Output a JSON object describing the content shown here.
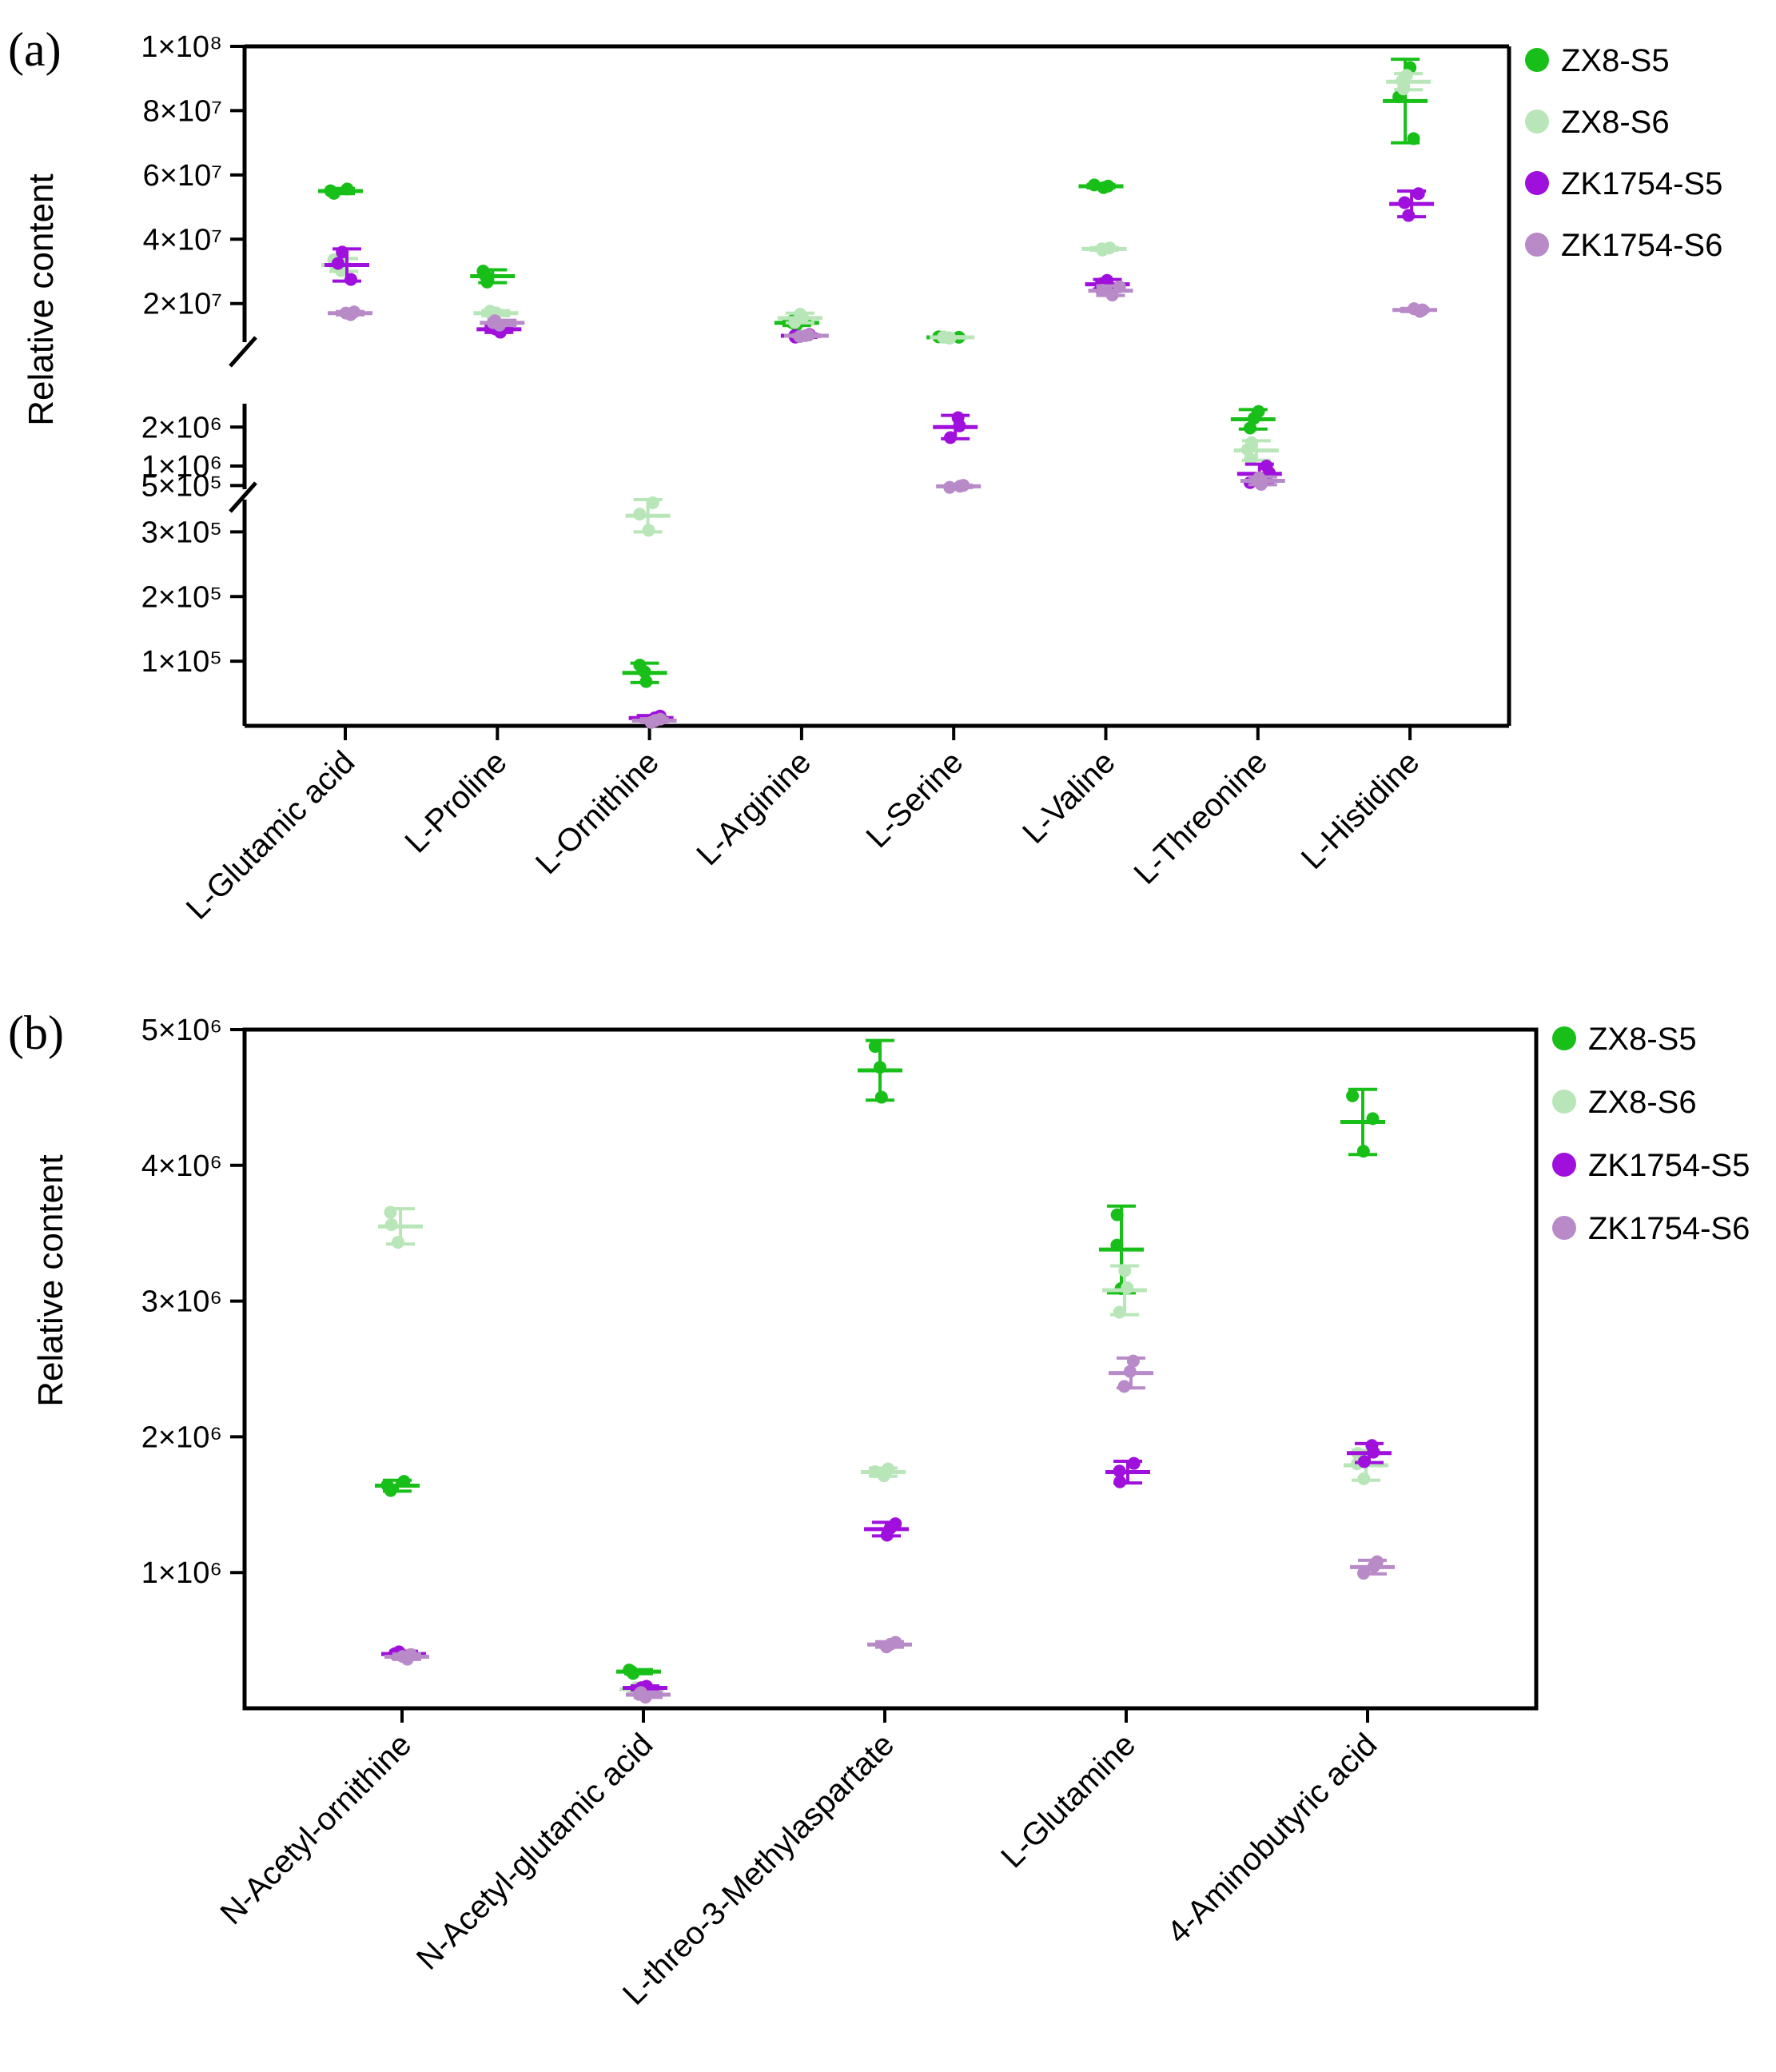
{
  "chart_data": [
    {
      "panel_label": "(a)",
      "type": "scatter",
      "subtype": "dot plot with mean and error bars",
      "ylabel": "Relative content",
      "y_axis_broken": true,
      "segments": [
        {
          "range": [
            0,
            350000
          ],
          "ticks": [
            100000,
            200000,
            300000
          ],
          "tick_labels": [
            "1×10⁵",
            "2×10⁵",
            "3×10⁵"
          ]
        },
        {
          "range": [
            200000,
            2600000
          ],
          "ticks": [
            500000,
            1000000,
            2000000
          ],
          "tick_labels": [
            "5×10⁵",
            "1×10⁶",
            "2×10⁶"
          ]
        },
        {
          "range": [
            8000000,
            100000000
          ],
          "ticks": [
            20000000,
            40000000,
            60000000,
            80000000,
            100000000
          ],
          "tick_labels": [
            "2×10⁷",
            "4×10⁷",
            "6×10⁷",
            "8×10⁷",
            "1×10⁸"
          ]
        }
      ],
      "categories": [
        "L-Glutamic acid",
        "L-Proline",
        "L-Ornithine",
        "L-Arginine",
        "L-Serine",
        "L-Valine",
        "L-Threonine",
        "L-Histidine"
      ],
      "series": [
        {
          "name": "ZX8-S5",
          "color": "#18bf18",
          "mean": [
            55000000,
            28500000,
            82000,
            14000000,
            9500000,
            56500000,
            2200000,
            83000000
          ],
          "error": [
            800000,
            2000000,
            15000,
            800000,
            200000,
            500000,
            250000,
            13000000
          ]
        },
        {
          "name": "ZX8-S6",
          "color": "#b8e6b8",
          "mean": [
            32000000,
            17000000,
            325000,
            15500000,
            9500000,
            37000000,
            1400000,
            89000000
          ],
          "error": [
            2000000,
            800000,
            25000,
            1500000,
            200000,
            400000,
            250000,
            2500000
          ]
        },
        {
          "name": "ZK1754-S5",
          "color": "#a010dc",
          "mean": [
            32000000,
            12000000,
            12000,
            10000000,
            2000000,
            26000000,
            800000,
            51000000
          ],
          "error": [
            5000000,
            1000000,
            4000,
            500000,
            300000,
            1500000,
            250000,
            4000000
          ]
        },
        {
          "name": "ZK1754-S6",
          "color": "#b88ac8",
          "mean": [
            17000000,
            14000000,
            8000,
            10000000,
            480000,
            24000000,
            620000,
            18000000
          ],
          "error": [
            500000,
            800000,
            3000,
            300000,
            30000,
            1500000,
            100000,
            500000
          ]
        }
      ]
    },
    {
      "panel_label": "(b)",
      "type": "scatter",
      "subtype": "dot plot with mean and error bars",
      "ylabel": "Relative content",
      "ylim": [
        0,
        5000000
      ],
      "ticks": [
        1000000,
        2000000,
        3000000,
        4000000,
        5000000
      ],
      "tick_labels": [
        "1×10⁶",
        "2×10⁶",
        "3×10⁶",
        "4×10⁶",
        "5×10⁶"
      ],
      "categories": [
        "N-Acetyl-ornithine",
        "N-Acetyl-glutamic acid",
        "L-threo-3-Methylaspartate",
        "L-Glutamine",
        "4-Aminobutyric acid"
      ],
      "series": [
        {
          "name": "ZX8-S5",
          "color": "#18bf18",
          "mean": [
            1640000,
            270000,
            4700000,
            3380000,
            4320000
          ],
          "error": [
            40000,
            15000,
            220000,
            320000,
            240000
          ]
        },
        {
          "name": "ZX8-S6",
          "color": "#b8e6b8",
          "mean": [
            3550000,
            140000,
            1740000,
            3080000,
            1790000
          ],
          "error": [
            130000,
            15000,
            30000,
            180000,
            110000
          ]
        },
        {
          "name": "ZK1754-S5",
          "color": "#a010dc",
          "mean": [
            400000,
            150000,
            1320000,
            1740000,
            1880000
          ],
          "error": [
            20000,
            15000,
            50000,
            80000,
            70000
          ]
        },
        {
          "name": "ZK1754-S6",
          "color": "#b88ac8",
          "mean": [
            380000,
            100000,
            470000,
            2470000,
            1040000
          ],
          "error": [
            20000,
            20000,
            20000,
            110000,
            50000
          ]
        }
      ]
    }
  ]
}
